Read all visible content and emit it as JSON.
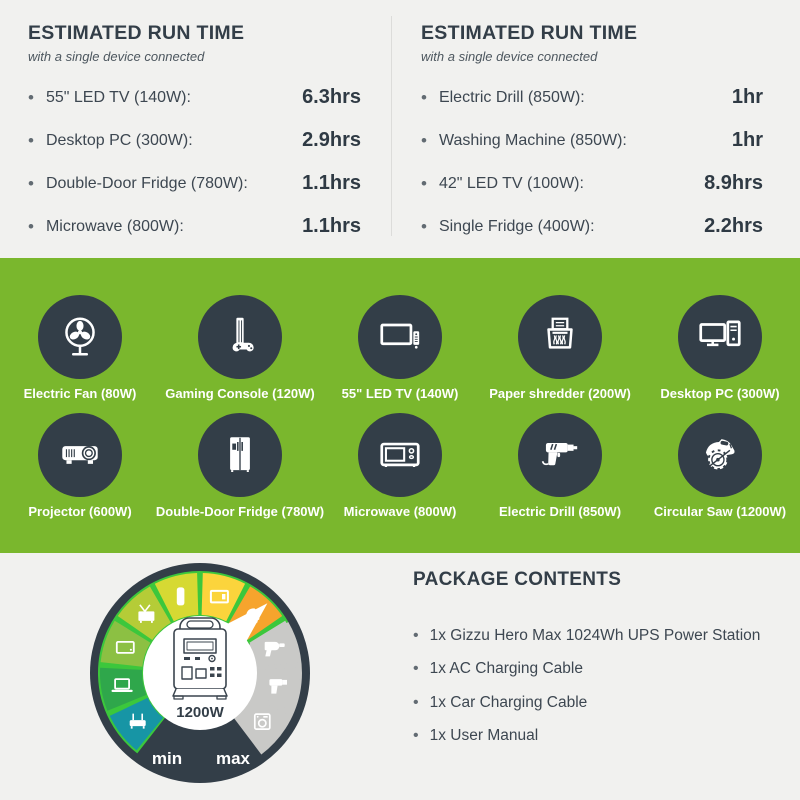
{
  "colors": {
    "bg_light": "#f1f1ef",
    "dark": "#333e48",
    "text": "#3d4751",
    "green_bg": "#7ab72d",
    "divider": "#dcdcda",
    "gauge_green_rim": "#3cc73c",
    "gauge_gray_rim": "#c9c9c7",
    "white": "#ffffff"
  },
  "run_time_panels": [
    {
      "title": "ESTIMATED RUN TIME",
      "subtitle": "with a single device connected",
      "items": [
        {
          "name": "55\" LED TV (140W):",
          "value": "6.3hrs"
        },
        {
          "name": "Desktop PC (300W):",
          "value": "2.9hrs"
        },
        {
          "name": "Double-Door Fridge (780W):",
          "value": "1.1hrs"
        },
        {
          "name": "Microwave (800W):",
          "value": "1.1hrs"
        }
      ]
    },
    {
      "title": "ESTIMATED RUN TIME",
      "subtitle": "with a single device connected",
      "items": [
        {
          "name": "Electric Drill (850W):",
          "value": "1hr"
        },
        {
          "name": "Washing Machine (850W):",
          "value": "1hr"
        },
        {
          "name": "42\" LED TV (100W):",
          "value": "8.9hrs"
        },
        {
          "name": "Single Fridge (400W):",
          "value": "2.2hrs"
        }
      ]
    }
  ],
  "device_grid": {
    "rows": [
      [
        {
          "label": "Electric Fan (80W)",
          "icon": "electric-fan"
        },
        {
          "label": "Gaming Console (120W)",
          "icon": "gaming-console"
        },
        {
          "label": "55\" LED TV (140W)",
          "icon": "led-tv"
        },
        {
          "label": "Paper shredder (200W)",
          "icon": "paper-shredder"
        },
        {
          "label": "Desktop PC (300W)",
          "icon": "desktop-pc"
        }
      ],
      [
        {
          "label": "Projector (600W)",
          "icon": "projector"
        },
        {
          "label": "Double-Door Fridge (780W)",
          "icon": "fridge"
        },
        {
          "label": "Microwave (800W)",
          "icon": "microwave"
        },
        {
          "label": "Electric Drill (850W)",
          "icon": "drill"
        },
        {
          "label": "Circular Saw (1200W)",
          "icon": "circular-saw"
        }
      ]
    ]
  },
  "gauge": {
    "center_label": "1200W",
    "min_label": "min",
    "max_label": "max",
    "segments": [
      {
        "icon": "router",
        "color": "#1795a5",
        "zone": "in-range"
      },
      {
        "icon": "laptop",
        "color": "#2fa74b",
        "zone": "in-range"
      },
      {
        "icon": "tablet",
        "color": "#8cc043",
        "zone": "in-range"
      },
      {
        "icon": "tv-antenna",
        "color": "#b5cc37",
        "zone": "in-range"
      },
      {
        "icon": "bottle",
        "color": "#d6d933",
        "zone": "in-range"
      },
      {
        "icon": "tv",
        "color": "#fbd43c",
        "zone": "in-range"
      },
      {
        "icon": "circular-saw",
        "color": "#f6a42d",
        "zone": "in-range"
      },
      {
        "icon": "hair-dryer",
        "color": "#c9c9c7",
        "zone": "out-of-range"
      },
      {
        "icon": "drill",
        "color": "#c9c9c7",
        "zone": "out-of-range"
      },
      {
        "icon": "washing-machine",
        "color": "#c9c9c7",
        "zone": "out-of-range"
      }
    ],
    "pointer_segment_index": 6
  },
  "package": {
    "title": "PACKAGE CONTENTS",
    "items": [
      "1x Gizzu Hero Max 1024Wh UPS Power Station",
      "1x AC Charging Cable",
      "1x Car Charging Cable",
      "1x User Manual"
    ]
  }
}
